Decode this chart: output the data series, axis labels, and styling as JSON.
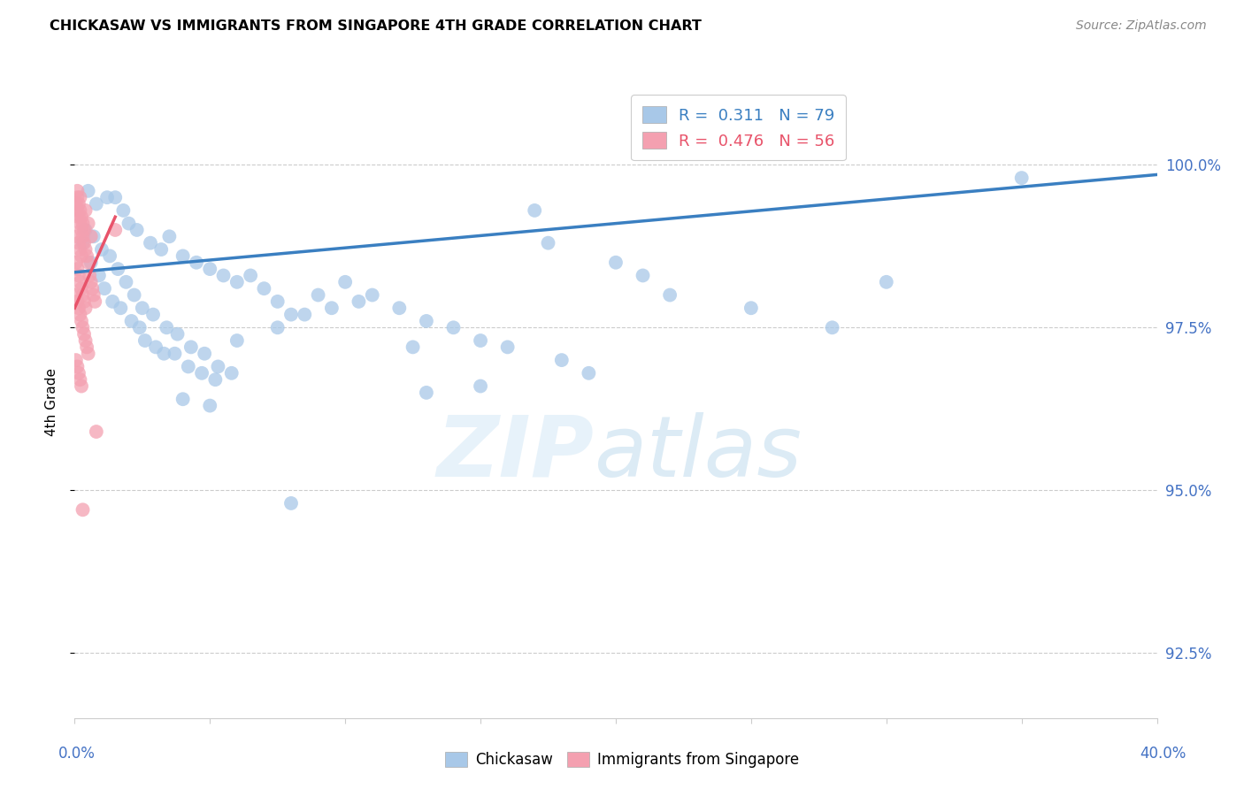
{
  "title": "CHICKASAW VS IMMIGRANTS FROM SINGAPORE 4TH GRADE CORRELATION CHART",
  "source": "Source: ZipAtlas.com",
  "ylabel": "4th Grade",
  "ylabel_tick_values": [
    92.5,
    95.0,
    97.5,
    100.0
  ],
  "xmin": 0.0,
  "xmax": 40.0,
  "ymin": 91.5,
  "ymax": 101.2,
  "legend_blue_label": "Chickasaw",
  "legend_pink_label": "Immigrants from Singapore",
  "R_blue": 0.311,
  "N_blue": 79,
  "R_pink": 0.476,
  "N_pink": 56,
  "blue_color": "#A8C8E8",
  "pink_color": "#F4A0B0",
  "blue_line_color": "#3A7FC1",
  "pink_line_color": "#E8536A",
  "blue_scatter": [
    [
      0.5,
      99.6
    ],
    [
      0.8,
      99.4
    ],
    [
      1.2,
      99.5
    ],
    [
      1.5,
      99.5
    ],
    [
      1.8,
      99.3
    ],
    [
      2.0,
      99.1
    ],
    [
      2.3,
      99.0
    ],
    [
      2.8,
      98.8
    ],
    [
      3.2,
      98.7
    ],
    [
      3.5,
      98.9
    ],
    [
      4.0,
      98.6
    ],
    [
      4.5,
      98.5
    ],
    [
      5.0,
      98.4
    ],
    [
      5.5,
      98.3
    ],
    [
      6.0,
      98.2
    ],
    [
      0.3,
      98.8
    ],
    [
      0.6,
      98.5
    ],
    [
      0.9,
      98.3
    ],
    [
      1.1,
      98.1
    ],
    [
      1.4,
      97.9
    ],
    [
      1.7,
      97.8
    ],
    [
      2.1,
      97.6
    ],
    [
      2.4,
      97.5
    ],
    [
      2.6,
      97.3
    ],
    [
      3.0,
      97.2
    ],
    [
      3.3,
      97.1
    ],
    [
      3.7,
      97.1
    ],
    [
      4.2,
      96.9
    ],
    [
      4.7,
      96.8
    ],
    [
      5.2,
      96.7
    ],
    [
      0.4,
      99.0
    ],
    [
      0.7,
      98.9
    ],
    [
      1.0,
      98.7
    ],
    [
      1.3,
      98.6
    ],
    [
      1.6,
      98.4
    ],
    [
      1.9,
      98.2
    ],
    [
      2.2,
      98.0
    ],
    [
      2.5,
      97.8
    ],
    [
      2.9,
      97.7
    ],
    [
      3.4,
      97.5
    ],
    [
      3.8,
      97.4
    ],
    [
      4.3,
      97.2
    ],
    [
      4.8,
      97.1
    ],
    [
      5.3,
      96.9
    ],
    [
      5.8,
      96.8
    ],
    [
      6.5,
      98.3
    ],
    [
      7.0,
      98.1
    ],
    [
      7.5,
      97.9
    ],
    [
      8.0,
      97.7
    ],
    [
      9.0,
      98.0
    ],
    [
      10.0,
      98.2
    ],
    [
      11.0,
      98.0
    ],
    [
      12.0,
      97.8
    ],
    [
      13.0,
      97.6
    ],
    [
      14.0,
      97.5
    ],
    [
      15.0,
      97.3
    ],
    [
      16.0,
      97.2
    ],
    [
      17.0,
      99.3
    ],
    [
      18.0,
      97.0
    ],
    [
      20.0,
      98.5
    ],
    [
      22.0,
      98.0
    ],
    [
      25.0,
      97.8
    ],
    [
      28.0,
      97.5
    ],
    [
      30.0,
      98.2
    ],
    [
      35.0,
      99.8
    ],
    [
      6.0,
      97.3
    ],
    [
      7.5,
      97.5
    ],
    [
      8.5,
      97.7
    ],
    [
      9.5,
      97.8
    ],
    [
      10.5,
      97.9
    ],
    [
      12.5,
      97.2
    ],
    [
      15.0,
      96.6
    ],
    [
      17.5,
      98.8
    ],
    [
      19.0,
      96.8
    ],
    [
      21.0,
      98.3
    ],
    [
      4.0,
      96.4
    ],
    [
      5.0,
      96.3
    ],
    [
      8.0,
      94.8
    ],
    [
      13.0,
      96.5
    ]
  ],
  "pink_scatter": [
    [
      0.1,
      99.5
    ],
    [
      0.15,
      99.4
    ],
    [
      0.2,
      99.3
    ],
    [
      0.25,
      99.2
    ],
    [
      0.3,
      99.1
    ],
    [
      0.35,
      99.0
    ],
    [
      0.1,
      98.9
    ],
    [
      0.15,
      98.8
    ],
    [
      0.2,
      98.7
    ],
    [
      0.25,
      98.6
    ],
    [
      0.05,
      98.5
    ],
    [
      0.1,
      98.4
    ],
    [
      0.15,
      98.3
    ],
    [
      0.2,
      98.2
    ],
    [
      0.25,
      98.1
    ],
    [
      0.3,
      98.0
    ],
    [
      0.35,
      97.9
    ],
    [
      0.4,
      97.8
    ],
    [
      0.1,
      99.6
    ],
    [
      0.2,
      99.5
    ],
    [
      0.05,
      99.4
    ],
    [
      0.1,
      99.3
    ],
    [
      0.15,
      99.2
    ],
    [
      0.2,
      99.1
    ],
    [
      0.25,
      99.0
    ],
    [
      0.3,
      98.9
    ],
    [
      0.35,
      98.8
    ],
    [
      0.4,
      98.7
    ],
    [
      0.45,
      98.6
    ],
    [
      0.5,
      98.5
    ],
    [
      0.05,
      98.0
    ],
    [
      0.1,
      97.9
    ],
    [
      0.15,
      97.8
    ],
    [
      0.2,
      97.7
    ],
    [
      0.25,
      97.6
    ],
    [
      0.3,
      97.5
    ],
    [
      0.35,
      97.4
    ],
    [
      0.4,
      97.3
    ],
    [
      0.45,
      97.2
    ],
    [
      0.5,
      97.1
    ],
    [
      0.05,
      97.0
    ],
    [
      0.1,
      96.9
    ],
    [
      0.15,
      96.8
    ],
    [
      0.2,
      96.7
    ],
    [
      0.25,
      96.6
    ],
    [
      0.55,
      98.3
    ],
    [
      0.6,
      98.2
    ],
    [
      0.65,
      98.1
    ],
    [
      0.7,
      98.0
    ],
    [
      0.75,
      97.9
    ],
    [
      0.4,
      99.3
    ],
    [
      0.5,
      99.1
    ],
    [
      0.6,
      98.9
    ],
    [
      1.5,
      99.0
    ],
    [
      0.8,
      95.9
    ],
    [
      0.3,
      94.7
    ]
  ],
  "blue_trendline": [
    [
      0.0,
      98.35
    ],
    [
      40.0,
      99.85
    ]
  ],
  "pink_trendline": [
    [
      0.0,
      97.8
    ],
    [
      1.5,
      99.2
    ]
  ]
}
